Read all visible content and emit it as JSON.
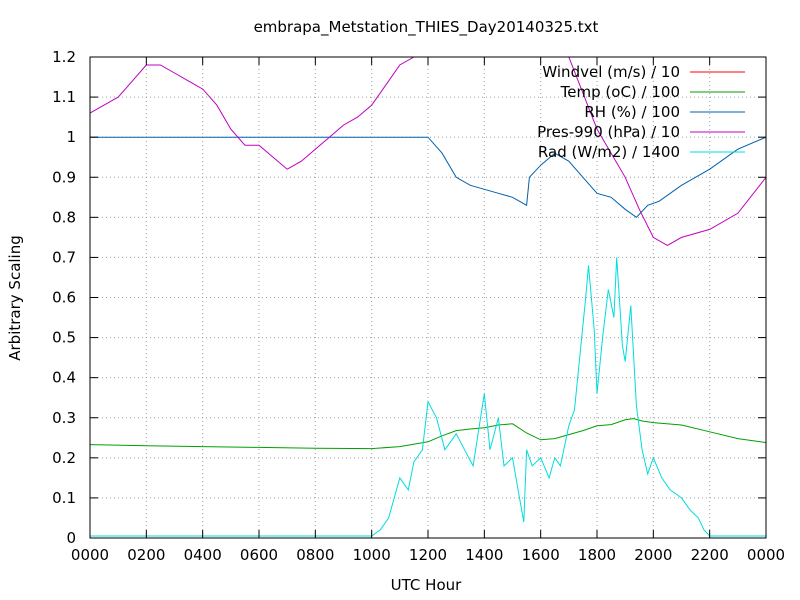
{
  "chart_data": {
    "type": "line",
    "title": "embrapa_Metstation_THIES_Day20140325.txt",
    "xlabel": "UTC Hour",
    "ylabel": "Arbitrary Scaling",
    "xlim": [
      0,
      24
    ],
    "ylim": [
      0,
      1.2
    ],
    "x_ticks": [
      0,
      2,
      4,
      6,
      8,
      10,
      12,
      14,
      16,
      18,
      20,
      22,
      24
    ],
    "x_tick_labels": [
      "0000",
      "0200",
      "0400",
      "0600",
      "0800",
      "1000",
      "1200",
      "1400",
      "1600",
      "1800",
      "2000",
      "2200",
      "0000"
    ],
    "y_ticks": [
      0,
      0.1,
      0.2,
      0.3,
      0.4,
      0.5,
      0.6,
      0.7,
      0.8,
      0.9,
      1,
      1.1,
      1.2
    ],
    "y_tick_labels": [
      "0",
      "0.1",
      "0.2",
      "0.3",
      "0.4",
      "0.5",
      "0.6",
      "0.7",
      "0.8",
      "0.9",
      "1",
      "1.1",
      "1.2"
    ],
    "grid": true,
    "legend_position": "top-right",
    "series": [
      {
        "name": "Windvel (m/s) / 10",
        "color": "#ff0000",
        "x": [],
        "y": []
      },
      {
        "name": "Temp (oC) / 100",
        "color": "#00a000",
        "x": [
          0,
          2,
          4,
          6,
          8,
          10,
          11,
          12,
          12.5,
          13,
          13.5,
          14,
          14.5,
          15,
          15.5,
          16,
          16.5,
          17,
          17.5,
          18,
          18.5,
          19,
          19.3,
          19.6,
          20,
          21,
          22,
          23,
          24
        ],
        "y": [
          0.233,
          0.23,
          0.228,
          0.226,
          0.224,
          0.223,
          0.228,
          0.24,
          0.255,
          0.268,
          0.272,
          0.275,
          0.282,
          0.285,
          0.262,
          0.245,
          0.248,
          0.258,
          0.268,
          0.28,
          0.283,
          0.295,
          0.298,
          0.292,
          0.288,
          0.282,
          0.265,
          0.248,
          0.238
        ]
      },
      {
        "name": "RH (%) / 100",
        "color": "#0060ad",
        "x": [
          0,
          2,
          4,
          6,
          8,
          10,
          11,
          12,
          12.5,
          13,
          13.5,
          14,
          14.5,
          15,
          15.5,
          15.6,
          16,
          16.5,
          17,
          17.5,
          18,
          18.5,
          19,
          19.4,
          19.8,
          20.2,
          21,
          22,
          23,
          24
        ],
        "y": [
          1,
          1,
          1,
          1,
          1,
          1,
          1,
          1,
          0.96,
          0.9,
          0.88,
          0.87,
          0.86,
          0.85,
          0.83,
          0.9,
          0.93,
          0.96,
          0.94,
          0.9,
          0.86,
          0.85,
          0.82,
          0.8,
          0.83,
          0.84,
          0.88,
          0.92,
          0.97,
          1
        ]
      },
      {
        "name": "Pres-990 (hPa) / 10",
        "color": "#c000c0",
        "x": [
          0,
          0.5,
          1,
          1.5,
          2,
          2.5,
          3,
          3.5,
          4,
          4.5,
          5,
          5.5,
          6,
          6.5,
          7,
          7.5,
          8,
          8.5,
          9,
          9.5,
          10,
          10.5,
          11,
          11.5,
          12,
          17,
          18,
          19,
          19.5,
          20,
          20.5,
          21,
          22,
          23,
          24
        ],
        "y": [
          1.06,
          1.08,
          1.1,
          1.14,
          1.18,
          1.18,
          1.16,
          1.14,
          1.12,
          1.08,
          1.02,
          0.98,
          0.98,
          0.95,
          0.92,
          0.94,
          0.97,
          1,
          1.03,
          1.05,
          1.08,
          1.13,
          1.18,
          1.2,
          1.2,
          1.2,
          1.02,
          0.9,
          0.82,
          0.75,
          0.73,
          0.75,
          0.77,
          0.81,
          0.9
        ]
      },
      {
        "name": "Rad (W/m2) / 1400",
        "color": "#00dddd",
        "x": [
          0,
          2,
          4,
          6,
          8,
          10,
          10.3,
          10.6,
          11,
          11.3,
          11.5,
          11.8,
          12,
          12.3,
          12.6,
          13,
          13.3,
          13.6,
          14,
          14.2,
          14.5,
          14.7,
          15,
          15.2,
          15.4,
          15.5,
          15.7,
          16,
          16.3,
          16.5,
          16.7,
          17,
          17.2,
          17.4,
          17.6,
          17.7,
          17.9,
          18,
          18.2,
          18.4,
          18.6,
          18.7,
          18.9,
          19,
          19.2,
          19.4,
          19.6,
          19.8,
          20,
          20.3,
          20.6,
          21,
          21.3,
          21.6,
          21.8,
          22,
          22.5,
          23,
          24
        ],
        "y": [
          0.005,
          0.005,
          0.005,
          0.005,
          0.005,
          0.005,
          0.02,
          0.05,
          0.15,
          0.12,
          0.19,
          0.22,
          0.34,
          0.3,
          0.22,
          0.26,
          0.22,
          0.18,
          0.36,
          0.22,
          0.3,
          0.18,
          0.2,
          0.12,
          0.04,
          0.22,
          0.18,
          0.2,
          0.15,
          0.2,
          0.18,
          0.28,
          0.32,
          0.46,
          0.6,
          0.68,
          0.52,
          0.36,
          0.5,
          0.62,
          0.55,
          0.7,
          0.48,
          0.44,
          0.58,
          0.33,
          0.22,
          0.16,
          0.2,
          0.15,
          0.12,
          0.1,
          0.07,
          0.05,
          0.02,
          0.005,
          0.005,
          0.005,
          0.005
        ]
      }
    ]
  }
}
